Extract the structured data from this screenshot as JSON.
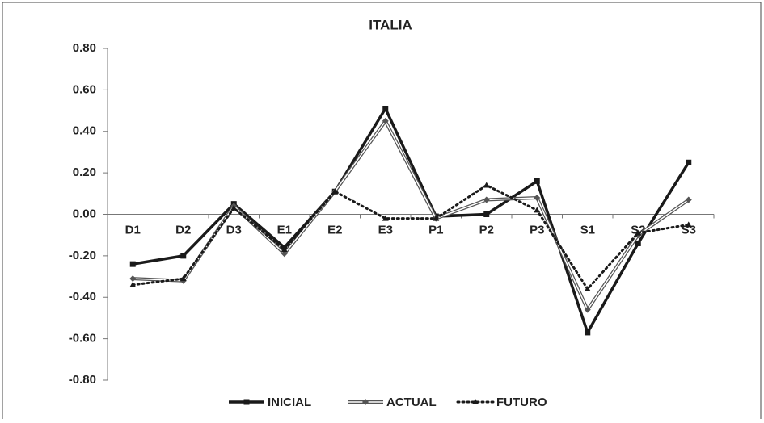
{
  "chart_data": {
    "type": "line",
    "title": "ITALIA",
    "categories": [
      "D1",
      "D2",
      "D3",
      "E1",
      "E2",
      "E3",
      "P1",
      "P2",
      "P3",
      "S1",
      "S2",
      "S3"
    ],
    "series": [
      {
        "name": "INICIAL",
        "color": "#1a1a1a",
        "line_style": "solid",
        "marker": "square",
        "values": [
          -0.24,
          -0.2,
          0.05,
          -0.16,
          0.11,
          0.51,
          -0.01,
          0.0,
          0.16,
          -0.57,
          -0.14,
          0.25
        ]
      },
      {
        "name": "ACTUAL",
        "color": "#555555",
        "line_style": "double",
        "marker": "diamond",
        "values": [
          -0.31,
          -0.32,
          0.04,
          -0.19,
          0.11,
          0.45,
          -0.02,
          0.07,
          0.08,
          -0.46,
          -0.1,
          0.07
        ]
      },
      {
        "name": "FUTURO",
        "color": "#1a1a1a",
        "line_style": "dotted",
        "marker": "triangle",
        "values": [
          -0.34,
          -0.31,
          0.03,
          -0.17,
          0.11,
          -0.02,
          -0.02,
          0.14,
          0.02,
          -0.36,
          -0.09,
          -0.05
        ]
      }
    ],
    "ylim": [
      -0.8,
      0.8
    ],
    "yticks": [
      {
        "value": -0.8,
        "label": "-0.80"
      },
      {
        "value": -0.6,
        "label": "-0.60"
      },
      {
        "value": -0.4,
        "label": "-0.40"
      },
      {
        "value": -0.2,
        "label": "-0.20"
      },
      {
        "value": 0,
        "label": "0.00"
      },
      {
        "value": 0.2,
        "label": "0.20"
      },
      {
        "value": 0.4,
        "label": "0.40"
      },
      {
        "value": 0.6,
        "label": "0.60"
      },
      {
        "value": 0.8,
        "label": "0.80"
      }
    ],
    "grid": false,
    "legend": "bottom"
  }
}
